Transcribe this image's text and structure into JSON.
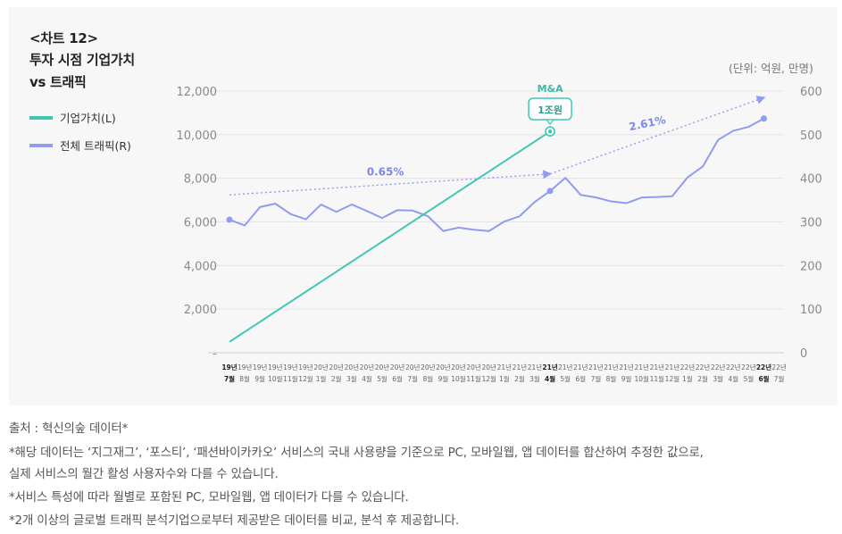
{
  "header": {
    "tag": "<차트 12>",
    "title_line1": "투자 시점 기업가치",
    "title_line2": "vs 트래픽",
    "unit": "(단위: 억원, 만명)"
  },
  "legend": [
    {
      "label": "기업가치(L)",
      "color": "#3fc7b5"
    },
    {
      "label": "전체 트래픽(R)",
      "color": "#8f9cf0"
    }
  ],
  "notes": [
    "출처 : 혁신의숲 데이터*",
    "*해당 데이터는 ‘지그재그’, ‘포스티’, ‘패션바이카카오’ 서비스의 국내 사용량을 기준으로 PC, 모바일웹, 앱 데이터를 합산하여 추정한 값으로,",
    "실제 서비스의 월간 활성 사용자수와 다를 수 있습니다.",
    "*서비스 특성에 따라 월별로 포함된 PC, 모바일웹, 앱 데이터가 다를 수 있습니다.",
    "*2개 이상의 글로벌 트래픽 분석기업으로부터 제공받은 데이터를 비교, 분석 후 제공합니다."
  ],
  "chart_data": {
    "type": "line",
    "categories": [
      {
        "year": "19년",
        "month": "7월",
        "bold": true
      },
      {
        "year": "19년",
        "month": "8월"
      },
      {
        "year": "19년",
        "month": "9월"
      },
      {
        "year": "19년",
        "month": "10월"
      },
      {
        "year": "19년",
        "month": "11월"
      },
      {
        "year": "19년",
        "month": "12월"
      },
      {
        "year": "20년",
        "month": "1월"
      },
      {
        "year": "20년",
        "month": "2월"
      },
      {
        "year": "20년",
        "month": "3월"
      },
      {
        "year": "20년",
        "month": "4월"
      },
      {
        "year": "20년",
        "month": "5월"
      },
      {
        "year": "20년",
        "month": "6월"
      },
      {
        "year": "20년",
        "month": "7월"
      },
      {
        "year": "20년",
        "month": "8월"
      },
      {
        "year": "20년",
        "month": "9월"
      },
      {
        "year": "20년",
        "month": "10월"
      },
      {
        "year": "20년",
        "month": "11월"
      },
      {
        "year": "20년",
        "month": "12월"
      },
      {
        "year": "21년",
        "month": "1월"
      },
      {
        "year": "21년",
        "month": "2월"
      },
      {
        "year": "21년",
        "month": "3월"
      },
      {
        "year": "21년",
        "month": "4월",
        "bold": true
      },
      {
        "year": "21년",
        "month": "5월"
      },
      {
        "year": "21년",
        "month": "6월"
      },
      {
        "year": "21년",
        "month": "7월"
      },
      {
        "year": "21년",
        "month": "8월"
      },
      {
        "year": "21년",
        "month": "9월"
      },
      {
        "year": "21년",
        "month": "10월"
      },
      {
        "year": "21년",
        "month": "11월"
      },
      {
        "year": "21년",
        "month": "12월"
      },
      {
        "year": "22년",
        "month": "1월"
      },
      {
        "year": "22년",
        "month": "2월"
      },
      {
        "year": "22년",
        "month": "3월"
      },
      {
        "year": "22년",
        "month": "4월"
      },
      {
        "year": "22년",
        "month": "5월"
      },
      {
        "year": "22년",
        "month": "6월",
        "bold": true
      },
      {
        "year": "22년",
        "month": "7월"
      }
    ],
    "left_axis": {
      "ticks": [
        "-",
        "2,000",
        "4,000",
        "6,000",
        "8,000",
        "10,000",
        "12,000"
      ],
      "range": [
        0,
        12000
      ]
    },
    "right_axis": {
      "ticks": [
        "0",
        "100",
        "200",
        "300",
        "400",
        "500",
        "600"
      ],
      "range": [
        0,
        600
      ]
    },
    "series": [
      {
        "name": "기업가치(L)",
        "axis": "left",
        "color": "#3fc7b5",
        "points": [
          {
            "index": 0,
            "value": 500
          },
          {
            "index": 21,
            "value": 10150
          }
        ]
      },
      {
        "name": "전체 트래픽(R)",
        "axis": "right",
        "color": "#8f9cf0",
        "values": [
          305,
          292,
          334,
          342,
          318,
          306,
          340,
          323,
          340,
          325,
          309,
          327,
          326,
          313,
          279,
          287,
          282,
          279,
          301,
          313,
          346,
          371,
          401,
          362,
          356,
          347,
          343,
          356,
          357,
          359,
          402,
          427,
          488,
          509,
          518,
          537,
          null
        ]
      }
    ],
    "annotations": {
      "ma_label": "M&A",
      "ma_value": "1조원",
      "trend1": {
        "label": "0.65%",
        "from": {
          "index": 0,
          "value": 362
        },
        "to": {
          "index": 21,
          "value": 410
        }
      },
      "trend2": {
        "label": "2.61%",
        "from": {
          "index": 21,
          "value": 410
        },
        "to": {
          "index": 35,
          "value": 585
        }
      }
    }
  }
}
